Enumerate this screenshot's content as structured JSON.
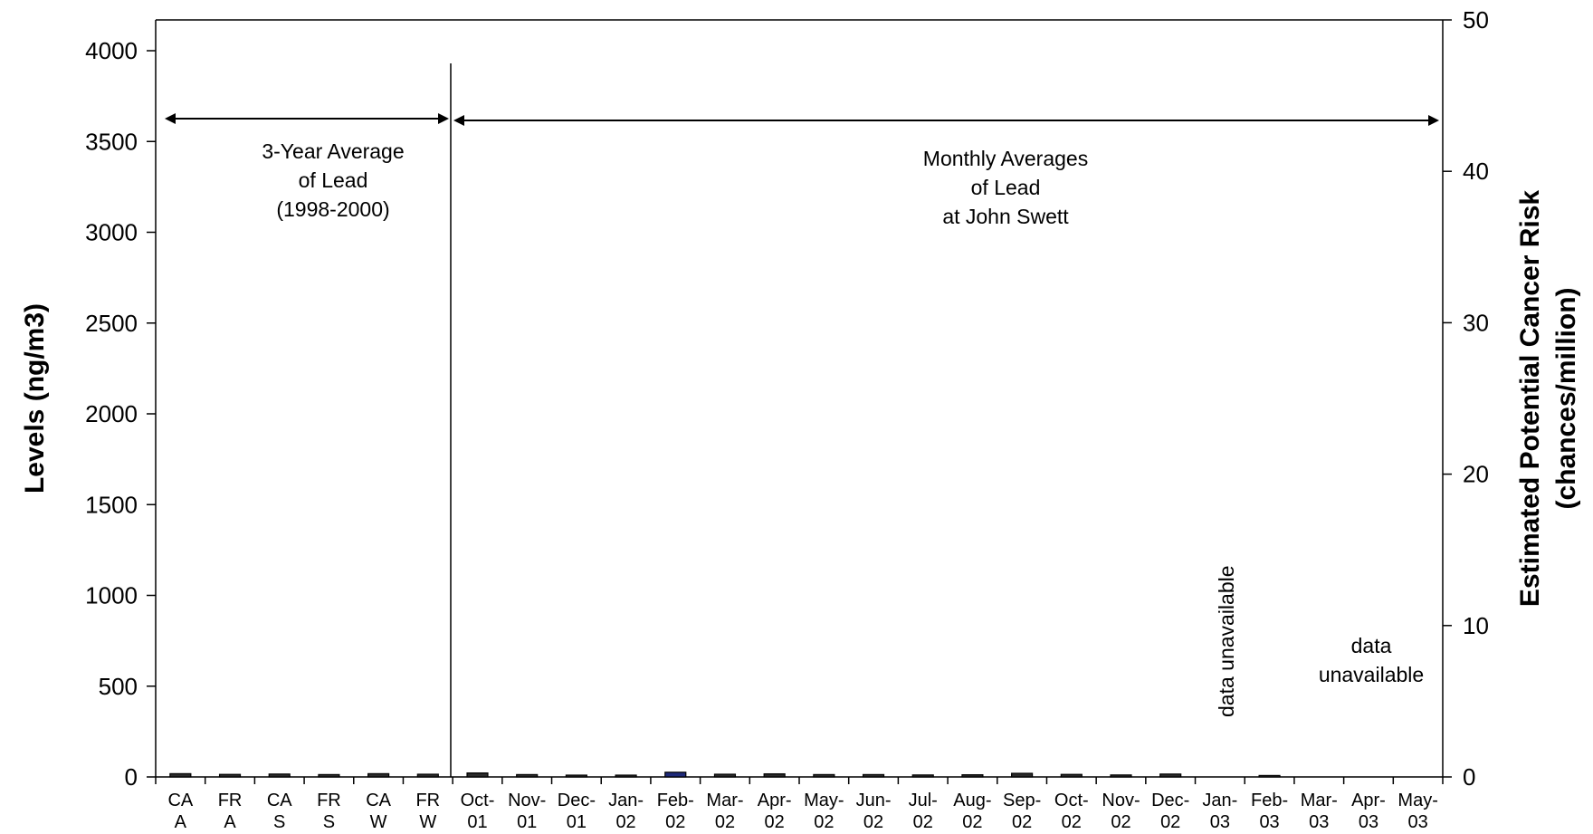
{
  "chart_data": {
    "type": "bar",
    "categories": [
      [
        "CA",
        "A"
      ],
      [
        "FR",
        "A"
      ],
      [
        "CA",
        "S"
      ],
      [
        "FR",
        "S"
      ],
      [
        "CA",
        "W"
      ],
      [
        "FR",
        "W"
      ],
      [
        "Oct-",
        "01"
      ],
      [
        "Nov-",
        "01"
      ],
      [
        "Dec-",
        "01"
      ],
      [
        "Jan-",
        "02"
      ],
      [
        "Feb-",
        "02"
      ],
      [
        "Mar-",
        "02"
      ],
      [
        "Apr-",
        "02"
      ],
      [
        "May-",
        "02"
      ],
      [
        "Jun-",
        "02"
      ],
      [
        "Jul-",
        "02"
      ],
      [
        "Aug-",
        "02"
      ],
      [
        "Sep-",
        "02"
      ],
      [
        "Oct-",
        "02"
      ],
      [
        "Nov-",
        "02"
      ],
      [
        "Dec-",
        "02"
      ],
      [
        "Jan-",
        "03"
      ],
      [
        "Feb-",
        "03"
      ],
      [
        "Mar-",
        "03"
      ],
      [
        "Apr-",
        "03"
      ],
      [
        "May-",
        "03"
      ]
    ],
    "series": [
      {
        "values": [
          18,
          14,
          16,
          13,
          18,
          15,
          22,
          13,
          10,
          10,
          26,
          15,
          17,
          13,
          13,
          11,
          12,
          20,
          14,
          11,
          16,
          null,
          8,
          null,
          null,
          null
        ]
      }
    ],
    "bar_colors": {
      "default": "#2b2b2b",
      "highlight": "#1f2a7a",
      "highlight_index": 10
    },
    "ylabel": "Levels (ng/m3)",
    "ylim": [
      0,
      4000
    ],
    "yticks": [
      "0",
      "500",
      "1000",
      "1500",
      "2000",
      "2500",
      "3000",
      "3500",
      "4000"
    ],
    "y2label_line1": "Estimated Potential Cancer Risk",
    "y2label_line2": "(chances/million)",
    "y2lim": [
      0,
      50
    ],
    "y2ticks": [
      "0",
      "10",
      "20",
      "30",
      "40",
      "50"
    ],
    "grid": false,
    "annotations": {
      "left_span": {
        "lines": [
          "3-Year Average",
          "of Lead",
          "(1998-2000)"
        ]
      },
      "right_span": {
        "lines": [
          "Monthly Averages",
          "of Lead",
          "at John Swett"
        ]
      },
      "jan03_note": "data unavailable",
      "mar_may03_note": [
        "data",
        "unavailable"
      ]
    }
  }
}
